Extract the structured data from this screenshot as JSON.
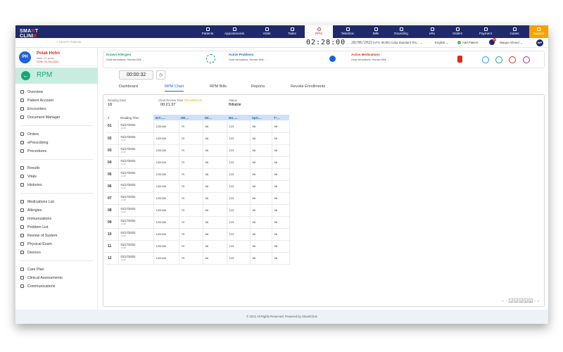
{
  "brand": {
    "line1": "SMA",
    "dot": "R",
    "line1b": "T",
    "line2": "CLINI",
    "line2b": "X"
  },
  "nav": [
    {
      "label": "Patients",
      "active": false
    },
    {
      "label": "Appointments",
      "active": false
    },
    {
      "label": "Visits",
      "active": false
    },
    {
      "label": "Tasks",
      "active": false
    },
    {
      "label": "RPM",
      "active": true
    },
    {
      "label": "Teleclinic",
      "active": false
    },
    {
      "label": "Bills",
      "active": false
    },
    {
      "label": "Rounding",
      "active": false
    },
    {
      "label": "eRx",
      "active": false
    },
    {
      "label": "Orders",
      "active": false
    },
    {
      "label": "Payment",
      "active": false
    },
    {
      "label": "Cases",
      "active": false
    },
    {
      "label": "Support",
      "active": false
    }
  ],
  "subbar": {
    "search_placeholder": "Search Patients",
    "clock": "02:28:00",
    "date": "28/06/2022",
    "timezone": "(UTC-05:00) Cuba Standard Tim...",
    "language": "English",
    "add_patient": "Add Patient",
    "notif_count": "10",
    "user_name": "Waqas Ahmed",
    "user_initials": "WP"
  },
  "patient": {
    "initials": "PH",
    "name": "Polak Hohn",
    "meta": "Male, 21 years",
    "dob": "DOB: 09-Oct-2001"
  },
  "module_title": "RPM",
  "menu_groups": [
    [
      "Overview",
      "Patient Account",
      "Encounters",
      "Document Manager"
    ],
    [
      "Orders",
      "ePrescribing",
      "Procedures"
    ],
    [
      "Results",
      "Vitals",
      "Histories"
    ],
    [
      "Medications List",
      "Allergies",
      "Immunizations",
      "Problem List",
      "Review of System",
      "Physical Exam",
      "Devices"
    ],
    [
      "Care Plan",
      "Clinical Assessments",
      "Communications"
    ]
  ],
  "summary": {
    "allergies_title": "Known Allergies",
    "allergies_text": "Goat derivatives, Human Milk ...",
    "problems_title": "Active Problems",
    "problems_text": "Goat derivatives, Human Milk ...",
    "medications_title": "Active Medications",
    "medications_text": "Goat derivatives, Human Milk ..."
  },
  "colors": {
    "allergies": "#17a673",
    "problems": "#1e63d6",
    "medications": "#d62d20"
  },
  "timer": "00:00:32",
  "tabs": [
    {
      "label": "Dashboard",
      "active": false
    },
    {
      "label": "RPM Chart",
      "active": true
    },
    {
      "label": "RPM Bills",
      "active": false
    },
    {
      "label": "Reports",
      "active": false
    },
    {
      "label": "Revoke Enrollments",
      "active": false
    }
  ],
  "stats": {
    "reading_days_label": "Reading Days",
    "reading_days_value": "18",
    "review_label": "Chart Review Time",
    "review_tag": "TECHNICIAN",
    "review_value": "00:21:37",
    "status_label": "Status",
    "status_value": "Billable"
  },
  "table": {
    "headers": [
      "#",
      "Reading Time",
      "B.P......",
      "HR....",
      "Wt....",
      "BG.....",
      "SpO....",
      "T°..."
    ],
    "rows": [
      {
        "num": "01",
        "date": "01/17/2022",
        "time": "16:00",
        "bp": "120/180",
        "hr": "79",
        "wt": "56",
        "bg": "123",
        "spo": "98",
        "t": "98"
      },
      {
        "num": "02",
        "date": "01/17/2022",
        "time": "16:00",
        "bp": "120/180",
        "hr": "79",
        "wt": "56",
        "bg": "123",
        "spo": "98",
        "t": "98"
      },
      {
        "num": "03",
        "date": "01/17/2022",
        "time": "16:00",
        "bp": "120/180",
        "hr": "79",
        "wt": "56",
        "bg": "123",
        "spo": "98",
        "t": "98"
      },
      {
        "num": "04",
        "date": "01/17/2022",
        "time": "16:00",
        "bp": "120/180",
        "hr": "79",
        "wt": "56",
        "bg": "123",
        "spo": "98",
        "t": "98"
      },
      {
        "num": "05",
        "date": "01/17/2022",
        "time": "16:00",
        "bp": "120/180",
        "hr": "79",
        "wt": "56",
        "bg": "123",
        "spo": "98",
        "t": "98"
      },
      {
        "num": "06",
        "date": "01/17/2022",
        "time": "16:00",
        "bp": "120/180",
        "hr": "79",
        "wt": "56",
        "bg": "123",
        "spo": "98",
        "t": "98"
      },
      {
        "num": "07",
        "date": "01/17/2022",
        "time": "16:00",
        "bp": "120/180",
        "hr": "79",
        "wt": "56",
        "bg": "123",
        "spo": "98",
        "t": "98"
      },
      {
        "num": "08",
        "date": "01/17/2022",
        "time": "16:00",
        "bp": "120/180",
        "hr": "79",
        "wt": "56",
        "bg": "123",
        "spo": "98",
        "t": "98"
      },
      {
        "num": "09",
        "date": "01/17/2022",
        "time": "16:00",
        "bp": "120/180",
        "hr": "79",
        "wt": "56",
        "bg": "123",
        "spo": "98",
        "t": "98"
      },
      {
        "num": "10",
        "date": "01/17/2022",
        "time": "16:00",
        "bp": "120/180",
        "hr": "79",
        "wt": "56",
        "bg": "123",
        "spo": "98",
        "t": "98"
      },
      {
        "num": "11",
        "date": "01/17/2022",
        "time": "16:00",
        "bp": "120/180",
        "hr": "79",
        "wt": "56",
        "bg": "123",
        "spo": "98",
        "t": "98"
      },
      {
        "num": "12",
        "date": "01/17/2022",
        "time": "16:00",
        "bp": "120/180",
        "hr": "79",
        "wt": "56",
        "bg": "123",
        "spo": "98",
        "t": "98"
      }
    ]
  },
  "pager": {
    "first": "«",
    "prev": "‹",
    "pages": [
      "1",
      "2",
      "3",
      "4",
      "5"
    ],
    "next": "›",
    "last": "»"
  },
  "footer": "© 2022 All Rights Reserved. Powered by SmartClinix"
}
